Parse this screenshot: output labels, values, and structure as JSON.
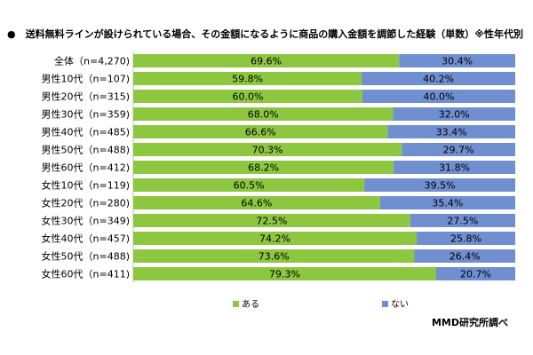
{
  "chart_data": {
    "type": "bar",
    "orientation": "horizontal",
    "stacked": true,
    "percent": true,
    "title": "●　送料無料ラインが設けられている場合、その金額になるように商品の購入金額を調節した経験（単数）※性年代別",
    "categories": [
      "全体（n=4,270)",
      "男性10代（n=107)",
      "男性20代（n=315)",
      "男性30代（n=359)",
      "男性40代（n=485)",
      "男性50代（n=488)",
      "男性60代（n=412)",
      "女性10代（n=119)",
      "女性20代（n=280)",
      "女性30代（n=349)",
      "女性40代（n=457)",
      "女性50代（n=488)",
      "女性60代（n=411)"
    ],
    "series": [
      {
        "name": "ある",
        "color": "#8dc63f",
        "values": [
          69.6,
          59.8,
          60.0,
          68.0,
          66.6,
          70.3,
          68.2,
          60.5,
          64.6,
          72.5,
          74.2,
          73.6,
          79.3
        ],
        "labels": [
          "69.6%",
          "59.8%",
          "60.0%",
          "68.0%",
          "66.6%",
          "70.3%",
          "68.2%",
          "60.5%",
          "64.6%",
          "72.5%",
          "74.2%",
          "73.6%",
          "79.3%"
        ]
      },
      {
        "name": "ない",
        "color": "#6f8fd1",
        "values": [
          30.4,
          40.2,
          40.0,
          32.0,
          33.4,
          29.7,
          31.8,
          39.5,
          35.4,
          27.5,
          25.8,
          26.4,
          20.7
        ],
        "labels": [
          "30.4%",
          "40.2%",
          "40.0%",
          "32.0%",
          "33.4%",
          "29.7%",
          "31.8%",
          "39.5%",
          "35.4%",
          "27.5%",
          "25.8%",
          "26.4%",
          "20.7%"
        ]
      }
    ],
    "xlim": [
      0,
      100
    ],
    "legend_position": "bottom",
    "grid": false,
    "source": "MMD研究所調べ"
  }
}
